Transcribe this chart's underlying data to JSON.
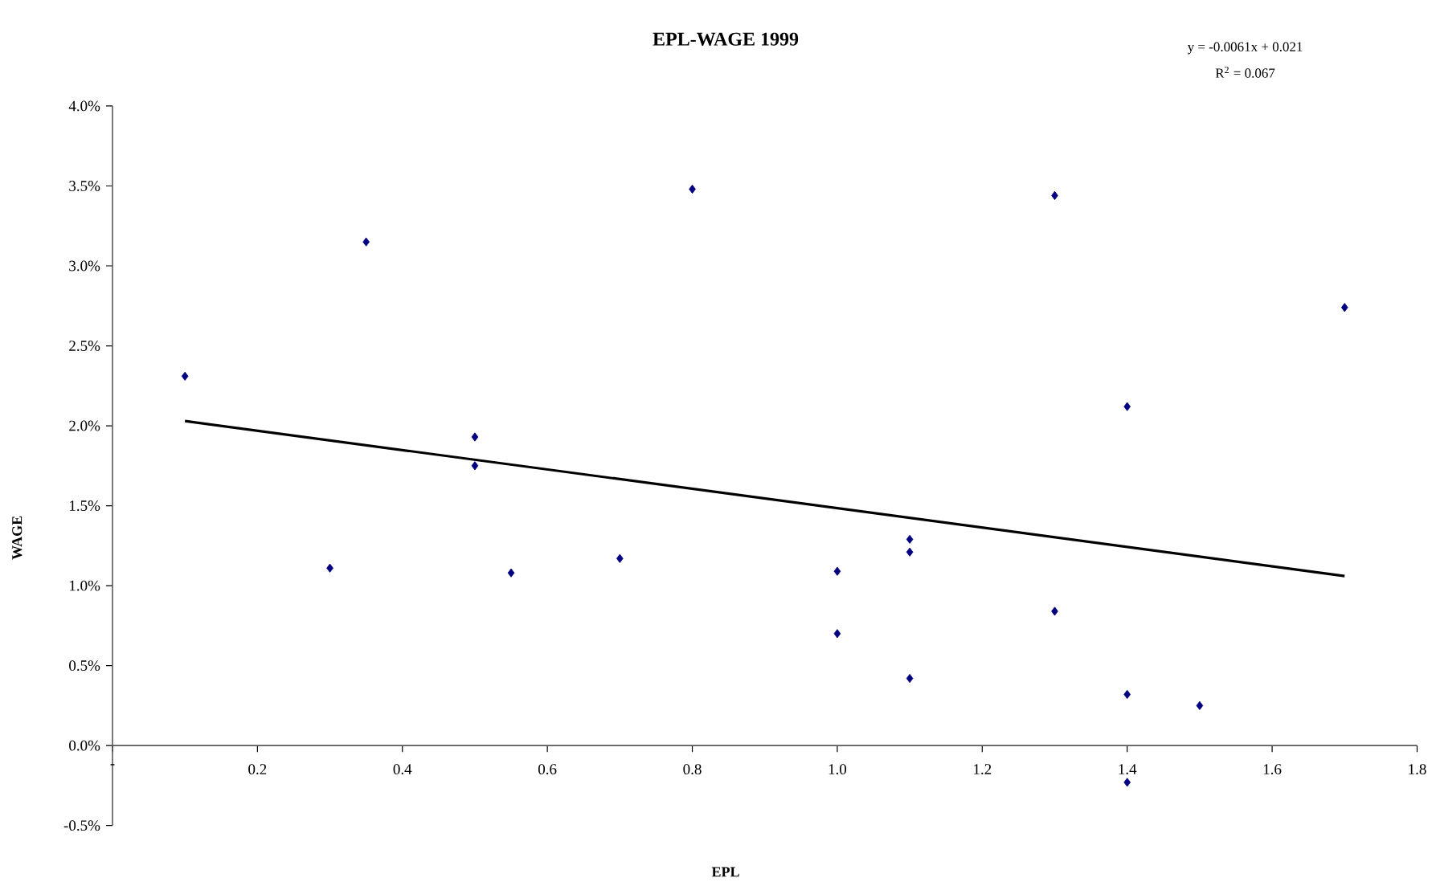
{
  "chart_data": {
    "type": "scatter",
    "title": "EPL-WAGE 1999",
    "xlabel": "EPL",
    "ylabel": "WAGE",
    "annotations": [
      "y = -0.0061x + 0.021",
      "R$^{2}$ = 0.067"
    ],
    "xlim": [
      0,
      1.8
    ],
    "ylim": [
      -0.005,
      0.04
    ],
    "xticks": [
      {
        "value": 0,
        "label": "-"
      },
      0.2,
      0.4,
      0.6,
      0.8,
      {
        "value": 1,
        "label": "1.0"
      },
      1.2,
      1.4,
      1.6,
      1.8
    ],
    "yticks": [
      {
        "value": -0.005,
        "label": "-0.5%"
      },
      {
        "value": 0,
        "label": "0.0%"
      },
      {
        "value": 0.005,
        "label": "0.5%"
      },
      {
        "value": 0.01,
        "label": "1.0%"
      },
      {
        "value": 0.015,
        "label": "1.5%"
      },
      {
        "value": 0.02,
        "label": "2.0%"
      },
      {
        "value": 0.025,
        "label": "2.5%"
      },
      {
        "value": 0.03,
        "label": "3.0%"
      },
      {
        "value": 0.035,
        "label": "3.5%"
      },
      {
        "value": 0.04,
        "label": "4.0%"
      }
    ],
    "series": [
      {
        "color": "#000080",
        "marker": "diamond",
        "x": [
          0.1,
          0.3,
          0.35,
          0.5,
          0.5,
          0.55,
          0.7,
          0.8,
          1.0,
          1.0,
          1.1,
          1.1,
          1.1,
          1.3,
          1.3,
          1.4,
          1.4,
          1.4,
          1.5,
          1.7
        ],
        "values": [
          0.0231,
          0.0111,
          0.0315,
          0.0193,
          0.0175,
          0.0108,
          0.0117,
          0.0348,
          0.0109,
          0.007,
          0.0129,
          0.0121,
          0.0042,
          0.0344,
          0.0084,
          0.0212,
          0.0032,
          -0.0023,
          0.0025,
          0.0274
        ]
      },
      {
        "type": "line",
        "color": "#000000",
        "marker": "none",
        "line_style": "solid",
        "x": [
          0.1,
          1.7
        ],
        "values": [
          0.0203,
          0.0106
        ]
      }
    ]
  }
}
